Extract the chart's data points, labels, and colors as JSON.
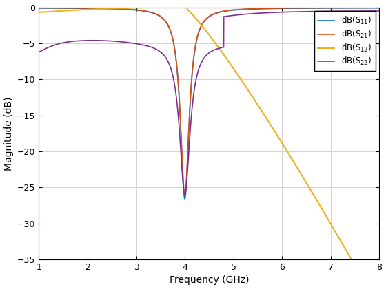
{
  "title": "",
  "xlabel": "Frequency (GHz)",
  "ylabel": "Magnitude (dB)",
  "xlim": [
    1,
    8
  ],
  "ylim": [
    -35,
    0
  ],
  "yticks": [
    0,
    -5,
    -10,
    -15,
    -20,
    -25,
    -30,
    -35
  ],
  "xticks": [
    1,
    2,
    3,
    4,
    5,
    6,
    7,
    8
  ],
  "colors": [
    "#0072BD",
    "#D95319",
    "#EDB120",
    "#7E2F8E"
  ],
  "background": "#ffffff",
  "grid_color": "#d3d3d3",
  "linewidth": 1.2
}
